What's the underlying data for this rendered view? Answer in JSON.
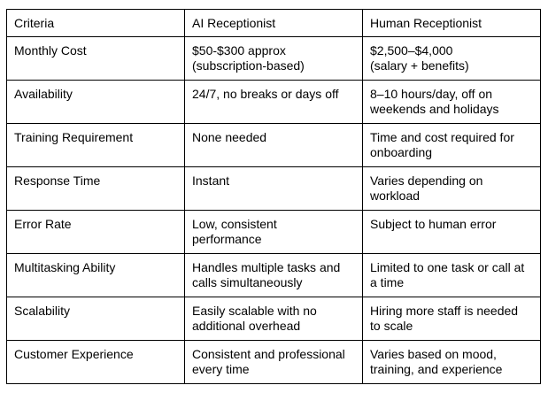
{
  "table": {
    "headers": [
      "Criteria",
      "AI Receptionist",
      "Human Receptionist"
    ],
    "rows": [
      [
        "Monthly Cost",
        "$50-$300 approx\n(subscription-based)",
        "$2,500–$4,000\n(salary + benefits)"
      ],
      [
        "Availability",
        "24/7, no breaks or days off",
        "8–10 hours/day, off on\nweekends and holidays"
      ],
      [
        "Training Requirement",
        "None needed",
        "Time and cost required for\nonboarding"
      ],
      [
        "Response Time",
        "Instant",
        "Varies depending on\nworkload"
      ],
      [
        "Error Rate",
        "Low, consistent\nperformance",
        "Subject to human error"
      ],
      [
        "Multitasking Ability",
        "Handles multiple tasks and\ncalls simultaneously",
        "Limited to one task or call at\na time"
      ],
      [
        "Scalability",
        "Easily scalable with no\nadditional overhead",
        "Hiring more staff is needed\nto scale"
      ],
      [
        "Customer Experience",
        "Consistent and professional\nevery time",
        "Varies based on mood,\ntraining, and experience"
      ]
    ]
  }
}
